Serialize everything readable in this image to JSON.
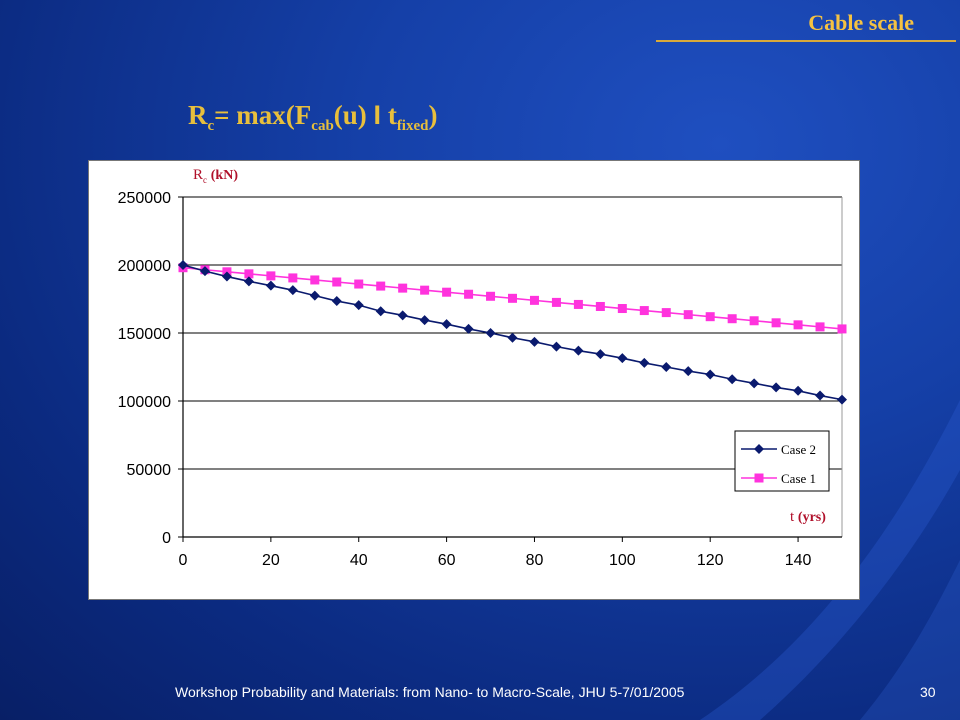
{
  "slide": {
    "section_title": "Cable scale",
    "formula": {
      "R": "R",
      "R_sub": "c",
      "eq": "= max(F",
      "F_sub": "cab",
      "mid": "(u) ",
      "bar": "I",
      "t": " t",
      "t_sub": "fixed",
      "close": ")"
    },
    "footer": "Workshop Probability and Materials: from Nano- to Macro-Scale, JHU 5-7/01/2005",
    "slide_number": "30"
  },
  "chart_data": {
    "type": "line",
    "ylabel": {
      "symbol": "R",
      "sub": "c",
      "unit": "(kN)"
    },
    "xlabel": {
      "symbol": "t",
      "unit": "(yrs)"
    },
    "xlim": [
      0,
      150
    ],
    "ylim": [
      0,
      250000
    ],
    "x_ticks": [
      0,
      20,
      40,
      60,
      80,
      100,
      120,
      140
    ],
    "y_ticks": [
      0,
      50000,
      100000,
      150000,
      200000,
      250000
    ],
    "grid": {
      "horizontal": true,
      "vertical": false
    },
    "legend_position": "bottom-right",
    "x": [
      0,
      5,
      10,
      15,
      20,
      25,
      30,
      35,
      40,
      45,
      50,
      55,
      60,
      65,
      70,
      75,
      80,
      85,
      90,
      95,
      100,
      105,
      110,
      115,
      120,
      125,
      130,
      135,
      140,
      145,
      150
    ],
    "series": [
      {
        "name": "Case 2",
        "color": "#0a1a6e",
        "marker": "diamond",
        "values": [
          200000,
          195500,
          191500,
          188000,
          184800,
          181500,
          177500,
          173500,
          170500,
          166000,
          163000,
          159500,
          156500,
          153000,
          150000,
          146500,
          143500,
          140000,
          137000,
          134500,
          131500,
          128000,
          125000,
          122000,
          119500,
          116000,
          113000,
          110000,
          107500,
          104000,
          101000
        ]
      },
      {
        "name": "Case 1",
        "color": "#ff33dd",
        "marker": "square",
        "values": [
          198000,
          196500,
          195000,
          193500,
          192000,
          190500,
          189000,
          187500,
          186000,
          184500,
          183000,
          181500,
          180000,
          178500,
          177000,
          175500,
          174000,
          172500,
          171000,
          169500,
          168000,
          166500,
          165000,
          163500,
          162000,
          160500,
          159000,
          157500,
          156000,
          154500,
          153000
        ]
      }
    ]
  }
}
